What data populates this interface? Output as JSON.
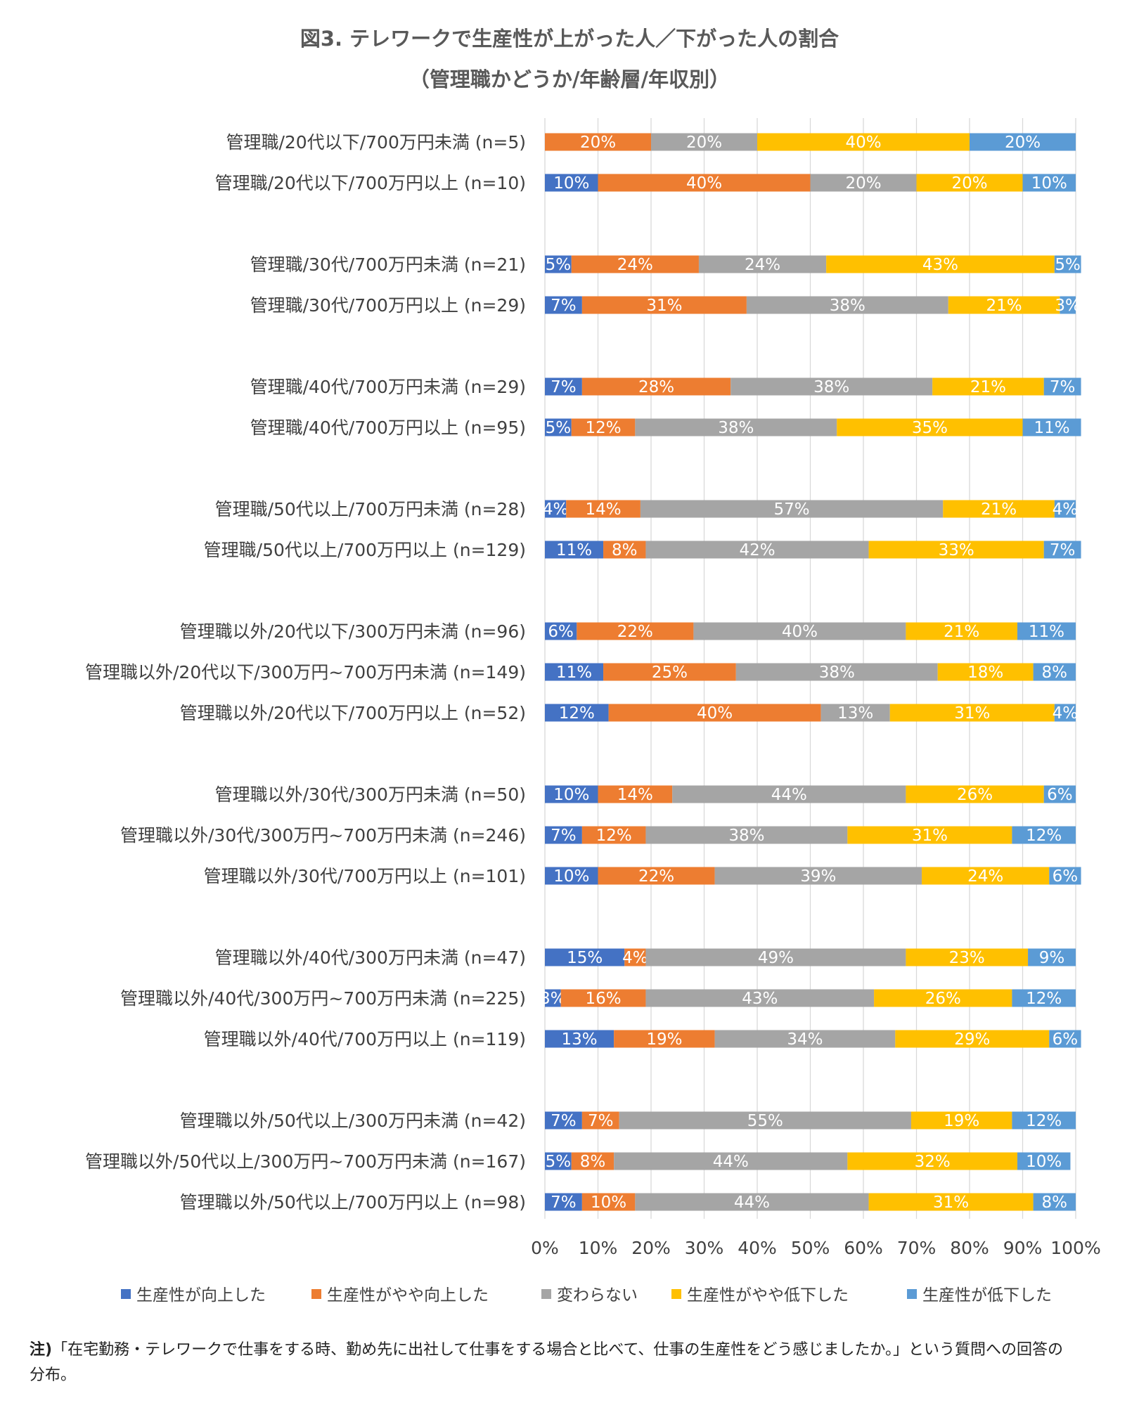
{
  "chart_data": {
    "type": "bar",
    "orientation": "horizontal",
    "stacked": "percent",
    "title": "図3. テレワークで生産性が上がった人／下がった人の割合",
    "subtitle": "（管理職かどうか/年齢層/年収別）",
    "categories": [
      "管理職/20代以下/700万円未満 (n=5)",
      "管理職/20代以下/700万円以上 (n=10)",
      "管理職/30代/700万円未満 (n=21)",
      "管理職/30代/700万円以上 (n=29)",
      "管理職/40代/700万円未満 (n=29)",
      "管理職/40代/700万円以上 (n=95)",
      "管理職/50代以上/700万円未満 (n=28)",
      "管理職/50代以上/700万円以上 (n=129)",
      "管理職以外/20代以下/300万円未満 (n=96)",
      "管理職以外/20代以下/300万円~700万円未満 (n=149)",
      "管理職以外/20代以下/700万円以上 (n=52)",
      "管理職以外/30代/300万円未満 (n=50)",
      "管理職以外/30代/300万円~700万円未満 (n=246)",
      "管理職以外/30代/700万円以上 (n=101)",
      "管理職以外/40代/300万円未満 (n=47)",
      "管理職以外/40代/300万円~700万円未満 (n=225)",
      "管理職以外/40代/700万円以上 (n=119)",
      "管理職以外/50代以上/300万円未満 (n=42)",
      "管理職以外/50代以上/300万円~700万円未満 (n=167)",
      "管理職以外/50代以上/700万円以上 (n=98)"
    ],
    "series": [
      {
        "name": "生産性が向上した",
        "color": "#4472C4",
        "values": [
          0,
          10,
          5,
          7,
          7,
          5,
          4,
          11,
          6,
          11,
          12,
          10,
          7,
          10,
          15,
          3,
          13,
          7,
          5,
          7
        ]
      },
      {
        "name": "生産性がやや向上した",
        "color": "#ED7D31",
        "values": [
          20,
          40,
          24,
          31,
          28,
          12,
          14,
          8,
          22,
          25,
          40,
          14,
          12,
          22,
          4,
          16,
          19,
          7,
          8,
          10
        ]
      },
      {
        "name": "変わらない",
        "color": "#A5A5A5",
        "values": [
          20,
          20,
          24,
          38,
          38,
          38,
          57,
          42,
          40,
          38,
          13,
          44,
          38,
          39,
          49,
          43,
          34,
          55,
          44,
          44
        ]
      },
      {
        "name": "生産性がやや低下した",
        "color": "#FFC000",
        "values": [
          40,
          20,
          43,
          21,
          21,
          35,
          21,
          33,
          21,
          18,
          31,
          26,
          31,
          24,
          23,
          26,
          29,
          19,
          32,
          31
        ]
      },
      {
        "name": "生産性が低下した",
        "color": "#5B9BD5",
        "values": [
          20,
          10,
          5,
          3,
          7,
          11,
          4,
          7,
          11,
          8,
          4,
          6,
          12,
          6,
          9,
          12,
          6,
          12,
          10,
          8
        ]
      }
    ],
    "xlim": [
      0,
      100
    ],
    "x_ticks": [
      "0%",
      "10%",
      "20%",
      "30%",
      "40%",
      "50%",
      "60%",
      "70%",
      "80%",
      "90%",
      "100%"
    ],
    "grid": true,
    "legend_position": "bottom",
    "value_label_suffix": "%"
  },
  "note": {
    "prefix": "注)",
    "text": "「在宅勤務・テレワークで仕事をする時、勤め先に出社して仕事をする場合と比べて、仕事の生産性をどう感じましたか。」という質問への回答の分布。"
  }
}
